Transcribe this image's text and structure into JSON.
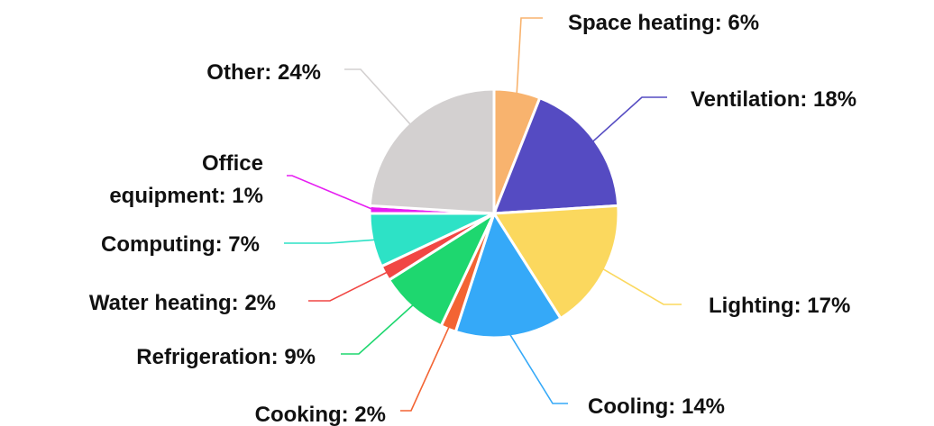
{
  "chart_data": {
    "type": "pie",
    "title": "",
    "slices": [
      {
        "label": "Space heating",
        "value": 6,
        "color": "#F8B36E"
      },
      {
        "label": "Ventilation",
        "value": 18,
        "color": "#554BC2"
      },
      {
        "label": "Lighting",
        "value": 17,
        "color": "#FBD85E"
      },
      {
        "label": "Cooling",
        "value": 14,
        "color": "#35A9F8"
      },
      {
        "label": "Cooking",
        "value": 2,
        "color": "#F36433"
      },
      {
        "label": "Refrigeration",
        "value": 9,
        "color": "#1ED76F"
      },
      {
        "label": "Water heating",
        "value": 2,
        "color": "#F14744"
      },
      {
        "label": "Computing",
        "value": 7,
        "color": "#2DE2C6"
      },
      {
        "label": "Office equipment",
        "value": 1,
        "color": "#E61EF2"
      },
      {
        "label": "Other",
        "value": 24,
        "color": "#D3D0D0"
      }
    ],
    "labels": {
      "space_heating": "Space heating: 6%",
      "ventilation": "Ventilation: 18%",
      "lighting": "Lighting: 17%",
      "cooling": "Cooling: 14%",
      "cooking": "Cooking: 2%",
      "refrigeration": "Refrigeration: 9%",
      "water_heating": "Water heating: 2%",
      "computing": "Computing: 7%",
      "office_equipment_line1": "Office",
      "office_equipment_line2": "equipment: 1%",
      "other": "Other: 24%"
    },
    "legend": "none",
    "grid": false
  }
}
